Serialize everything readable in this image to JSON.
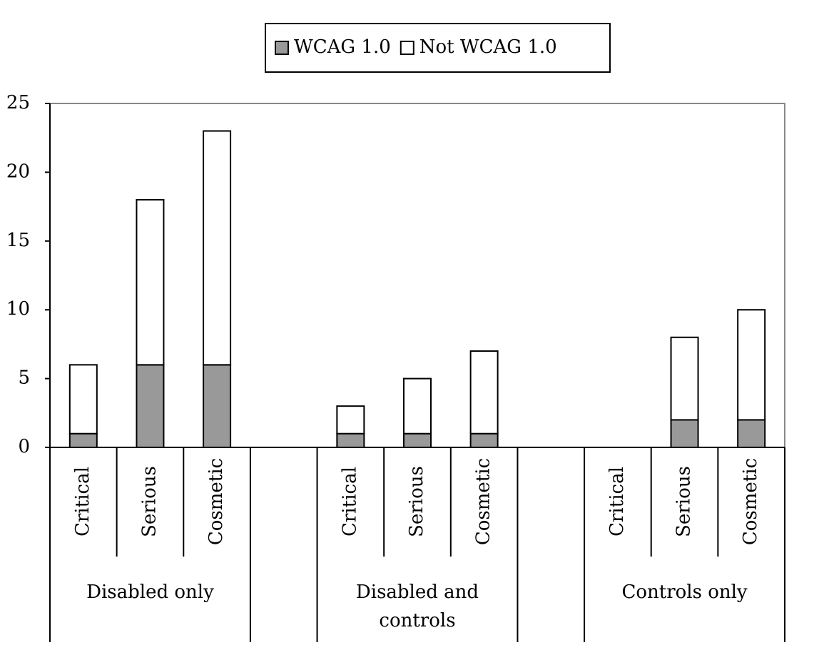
{
  "chart_data": {
    "type": "bar",
    "stacked": true,
    "categories": [
      "Critical",
      "Serious",
      "Cosmetic",
      null,
      "Critical",
      "Serious",
      "Cosmetic",
      null,
      "Critical",
      "Serious",
      "Cosmetic"
    ],
    "groups": [
      {
        "label": "Disabled only",
        "span": [
          0,
          2
        ]
      },
      {
        "label": "Disabled and controls",
        "span": [
          4,
          6
        ]
      },
      {
        "label": "Controls only",
        "span": [
          8,
          10
        ]
      }
    ],
    "series": [
      {
        "name": "WCAG 1.0",
        "color": "#999999",
        "values": [
          1,
          6,
          6,
          null,
          1,
          1,
          1,
          null,
          0,
          2,
          2
        ]
      },
      {
        "name": "Not WCAG 1.0",
        "color": "#ffffff",
        "values": [
          5,
          12,
          17,
          null,
          2,
          4,
          6,
          null,
          0,
          6,
          8
        ]
      }
    ],
    "ylim": [
      0,
      25
    ],
    "yticks": [
      0,
      5,
      10,
      15,
      20,
      25
    ],
    "grid": false
  }
}
